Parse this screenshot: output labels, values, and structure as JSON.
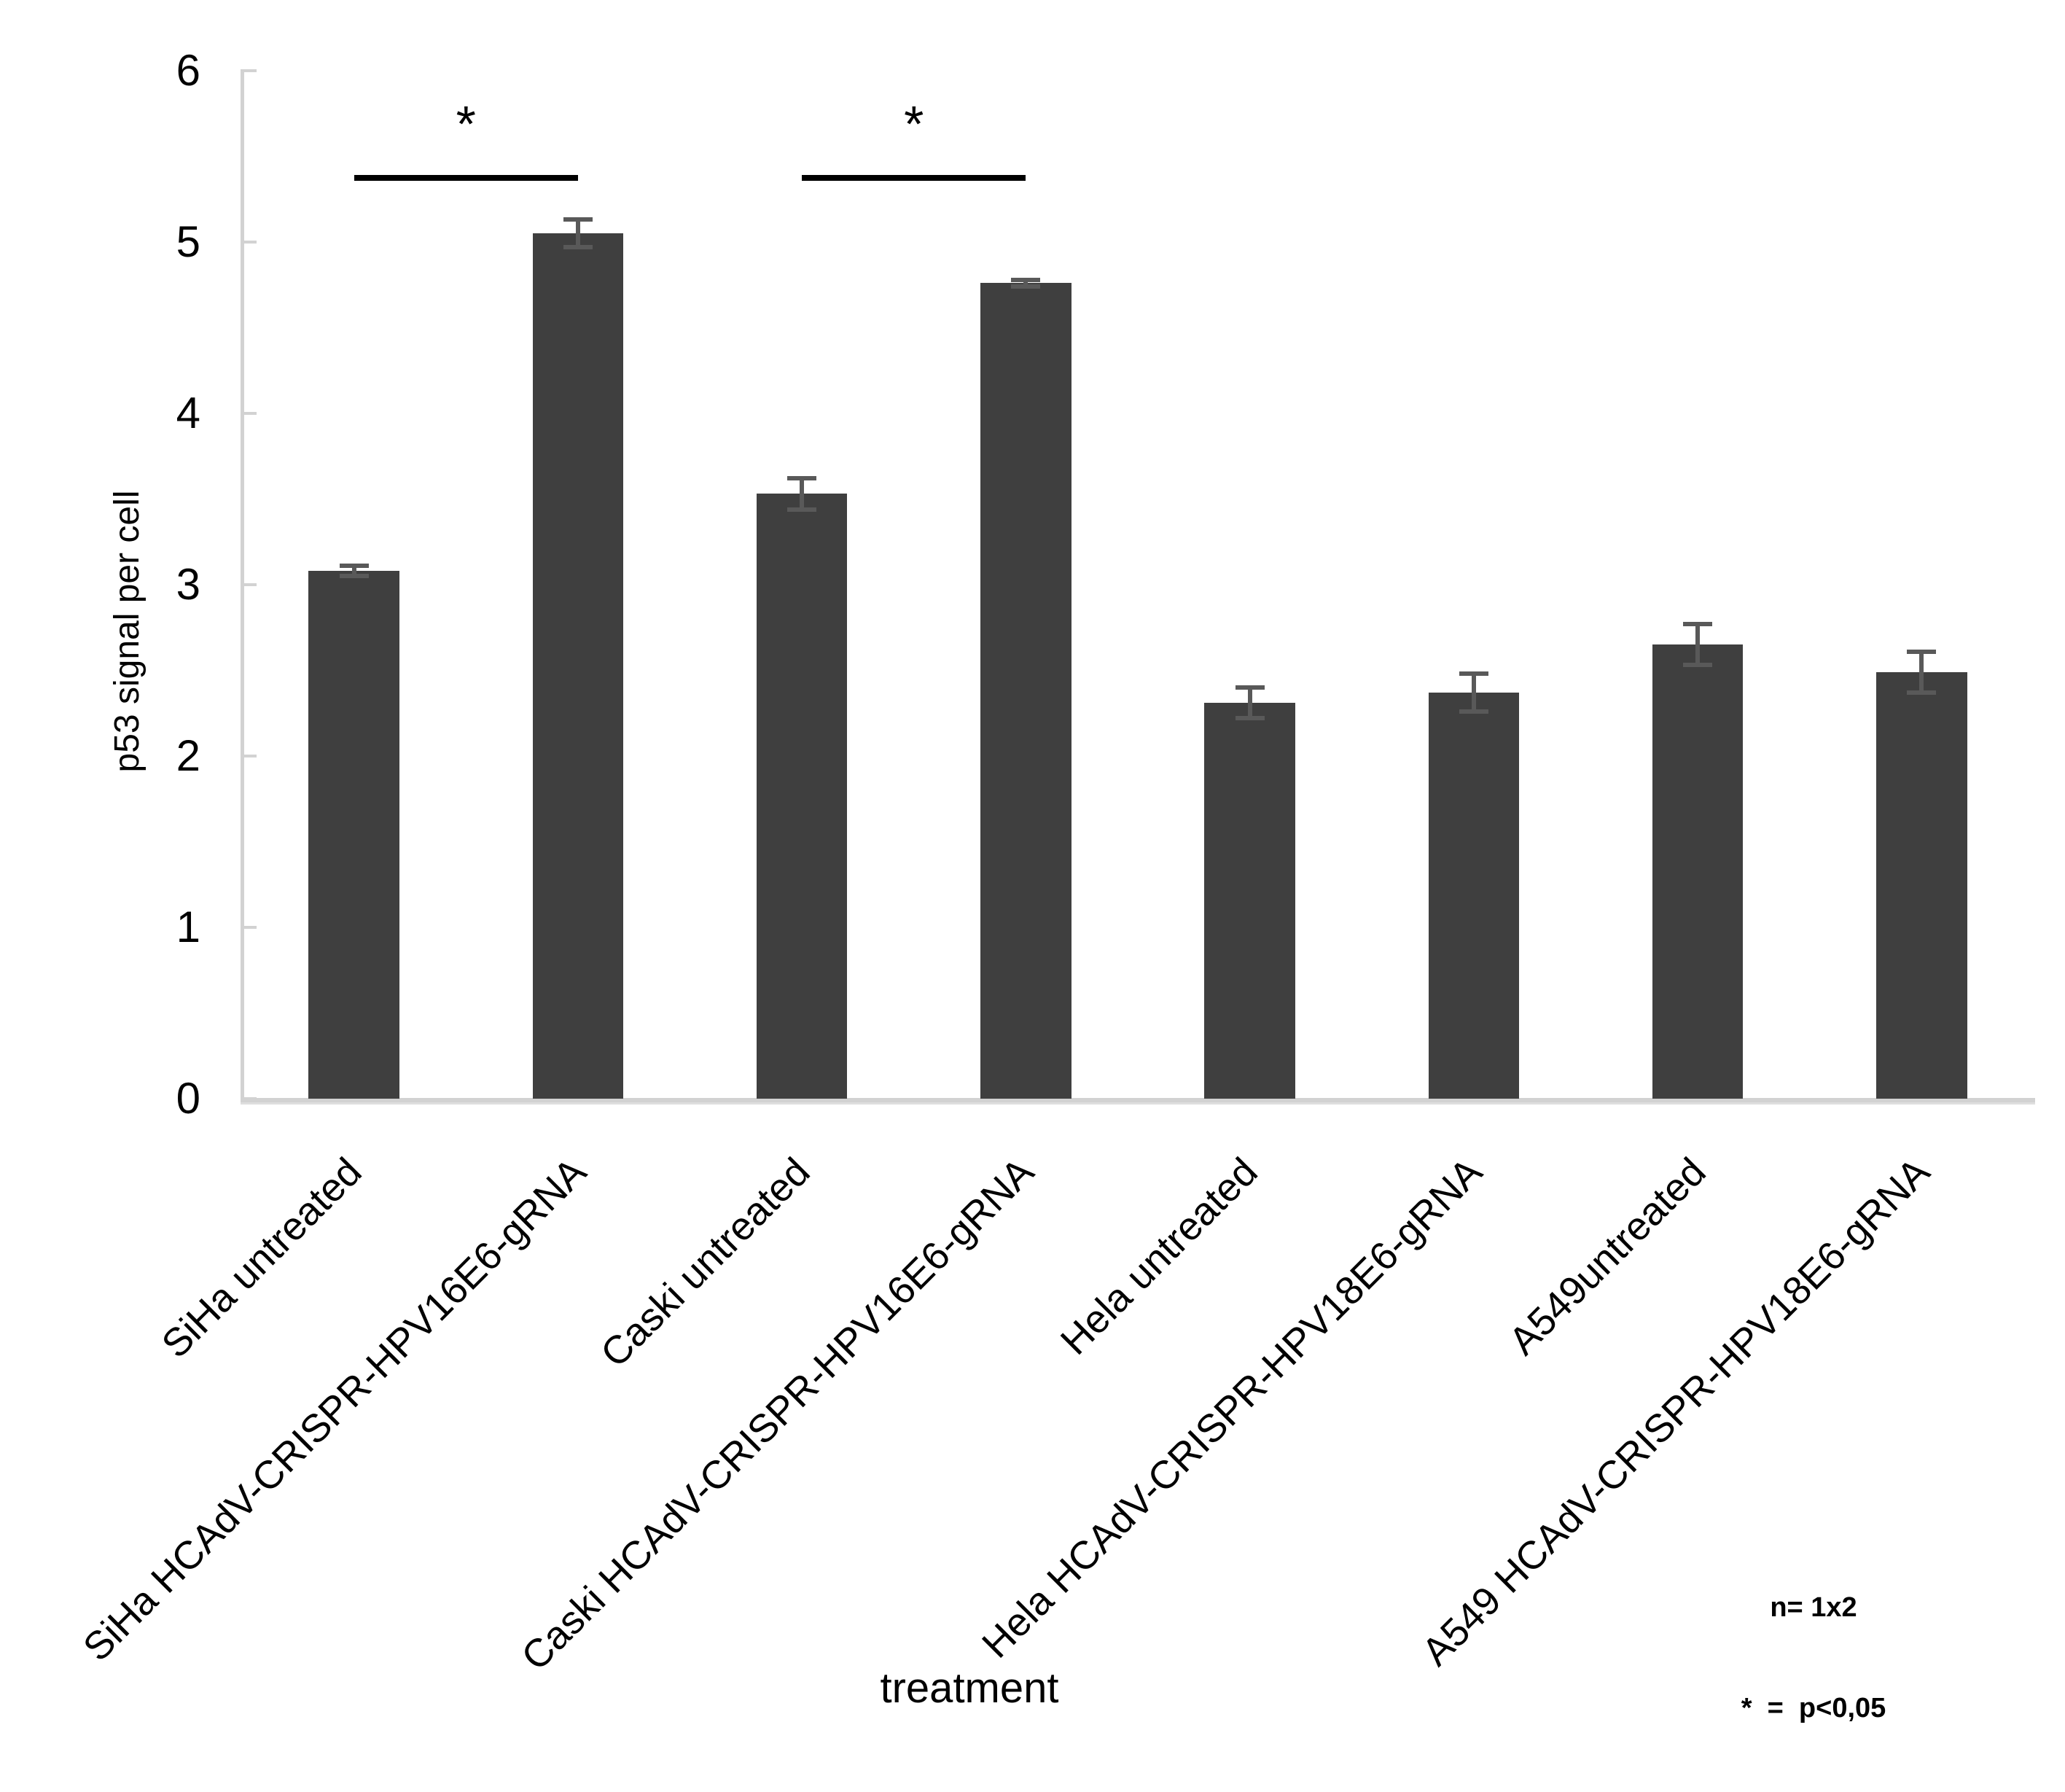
{
  "chart_data": {
    "type": "bar",
    "title": "",
    "xlabel": "treatment",
    "ylabel": "p53 signal per cell",
    "ylim": [
      0,
      6
    ],
    "yticks": [
      0,
      1,
      2,
      3,
      4,
      5,
      6
    ],
    "grid": false,
    "legend_position": "none",
    "bar_color": "#3F3F3F",
    "error_bar_color": "#595959",
    "axis_color": "#D2D2D2",
    "text_color": "#000000",
    "categories": [
      "SiHa untreated",
      "SiHa HCAdV-CRISPR-HPV16E6-gRNA",
      "Caski untreated",
      "Caski HCAdV-CRISPR-HPV16E6-gRNA",
      "Hela untreated",
      "Hela HCAdV-CRISPR-HPV18E6-gRNA",
      "A549untreated",
      "A549 HCAdV-CRISPR-HPV18E6-gRNA"
    ],
    "series": [
      {
        "name": "p53 signal per cell",
        "values": [
          3.08,
          5.05,
          3.53,
          4.76,
          2.31,
          2.37,
          2.65,
          2.49
        ],
        "errors": [
          0.03,
          0.08,
          0.09,
          0.02,
          0.09,
          0.11,
          0.12,
          0.12
        ]
      }
    ],
    "significance_brackets": [
      {
        "from_index": 0,
        "to_index": 1,
        "label": "*",
        "y_value": 5.39
      },
      {
        "from_index": 2,
        "to_index": 3,
        "label": "*",
        "y_value": 5.39
      }
    ],
    "note": {
      "line1": "n= 1x2",
      "line2": "*  =  p<0,05"
    }
  }
}
